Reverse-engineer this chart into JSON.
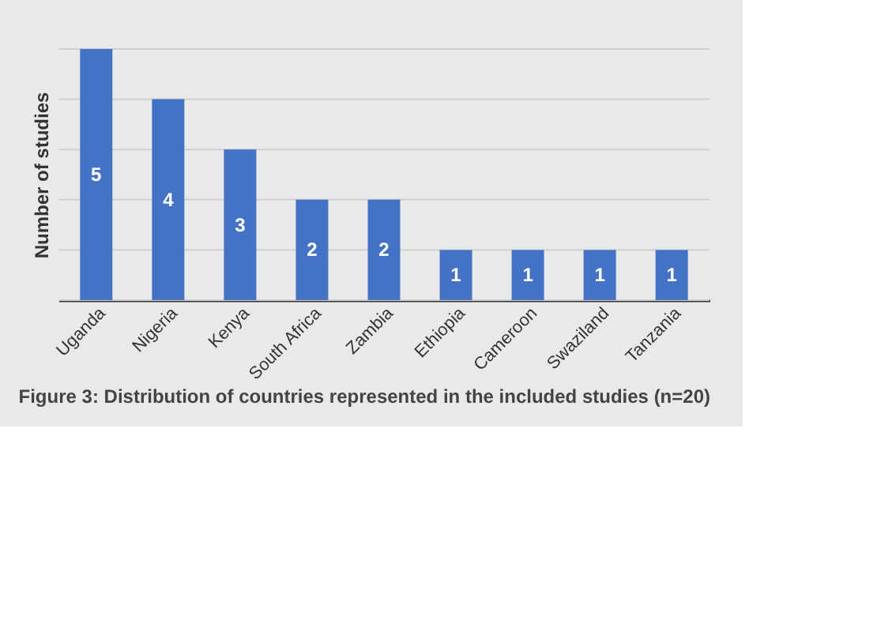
{
  "chart_data": {
    "type": "bar",
    "ylabel": "Number of studies",
    "categories": [
      "Uganda",
      "Nigeria",
      "Kenya",
      "South Africa",
      "Zambia",
      "Ethiopia",
      "Cameroon",
      "Swaziland",
      "Tanzania"
    ],
    "values": [
      5,
      4,
      3,
      2,
      2,
      1,
      1,
      1,
      1
    ],
    "color": "#4472c4",
    "ylim": [
      0,
      5
    ],
    "yticks": [
      {
        "value": 0,
        "label": null
      },
      {
        "value": 1,
        "label": null
      },
      {
        "value": 2,
        "label": null
      },
      {
        "value": 3,
        "label": null
      },
      {
        "value": 4,
        "label": null
      },
      {
        "value": 5,
        "label": null
      }
    ],
    "grid": "y",
    "tick_labels": "x",
    "data_labels": true,
    "annotations": [
      "Figure 3: Distribution of countries represented in the included studies (n=20)"
    ]
  }
}
